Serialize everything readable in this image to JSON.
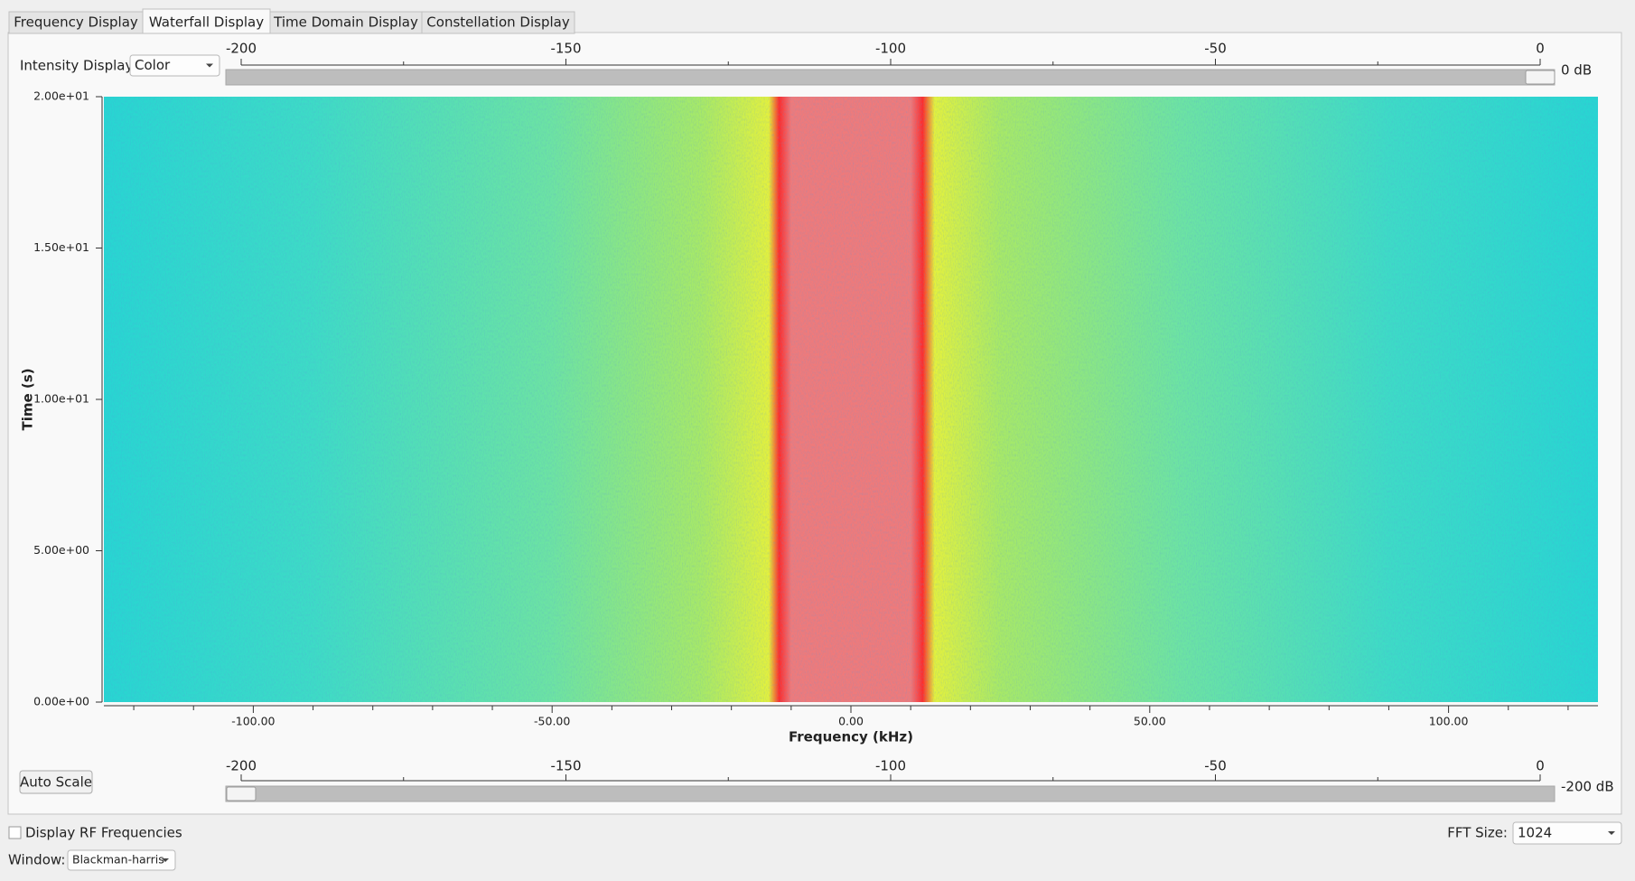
{
  "tabs": [
    {
      "label": "Frequency Display",
      "selected": false
    },
    {
      "label": "Waterfall Display",
      "selected": true
    },
    {
      "label": "Time Domain Display",
      "selected": false
    },
    {
      "label": "Constellation Display",
      "selected": false
    }
  ],
  "intensity": {
    "label": "Intensity Display:",
    "value": "Color"
  },
  "top_slider": {
    "range": [
      -200,
      0
    ],
    "ticks": [
      -200,
      -150,
      -100,
      -50,
      0
    ],
    "minor_ticks": [
      -175,
      -125,
      -75,
      -25
    ],
    "value": 0,
    "value_label": "0 dB"
  },
  "bottom_slider": {
    "range": [
      -200,
      0
    ],
    "ticks": [
      -200,
      -150,
      -100,
      -50,
      0
    ],
    "minor_ticks": [
      -175,
      -125,
      -75,
      -25
    ],
    "value": -200,
    "value_label": "-200 dB"
  },
  "chart_data": {
    "type": "heatmap",
    "x_label": "Frequency (kHz)",
    "y_label": "Time (s)",
    "xlim": [
      -125,
      125
    ],
    "xticks": [
      {
        "value": -100,
        "label": "-100.00"
      },
      {
        "value": -50,
        "label": "-50.00"
      },
      {
        "value": 0,
        "label": "0.00"
      },
      {
        "value": 50,
        "label": "50.00"
      },
      {
        "value": 100,
        "label": "100.00"
      }
    ],
    "xminorticks": [
      -120,
      -110,
      -90,
      -80,
      -70,
      -60,
      -40,
      -30,
      -20,
      -10,
      10,
      20,
      30,
      40,
      60,
      70,
      80,
      90,
      110,
      120
    ],
    "ylim": [
      0,
      20
    ],
    "yticks": [
      {
        "value": 0,
        "label": "0.00e+00"
      },
      {
        "value": 5,
        "label": "5.00e+00"
      },
      {
        "value": 10,
        "label": "1.00e+01"
      },
      {
        "value": 15,
        "label": "1.50e+01"
      },
      {
        "value": 20,
        "label": "2.00e+01"
      }
    ]
  },
  "auto_scale": "Auto Scale",
  "display_rf": {
    "label": "Display RF Frequencies",
    "checked": false
  },
  "fft_size": {
    "label": "FFT Size:",
    "value": "1024"
  },
  "window": {
    "label": "Window:",
    "value": "Blackman-harris"
  }
}
